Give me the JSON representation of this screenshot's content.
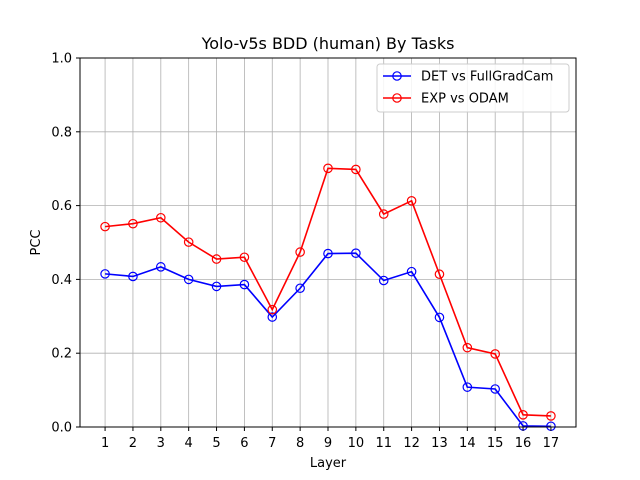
{
  "chart_data": {
    "type": "line",
    "title": "Yolo-v5s BDD (human) By Tasks",
    "xlabel": "Layer",
    "ylabel": "PCC",
    "x": [
      1,
      2,
      3,
      4,
      5,
      6,
      7,
      8,
      9,
      10,
      11,
      12,
      13,
      14,
      15,
      16,
      17
    ],
    "x_tick_labels": [
      "1",
      "2",
      "3",
      "4",
      "5",
      "6",
      "7",
      "8",
      "9",
      "10",
      "11",
      "12",
      "13",
      "14",
      "15",
      "16",
      "17"
    ],
    "xlim": [
      0.1,
      17.9
    ],
    "ylim": [
      0.0,
      1.0
    ],
    "y_ticks": [
      0.0,
      0.2,
      0.4,
      0.6,
      0.8,
      1.0
    ],
    "y_tick_labels": [
      "0.0",
      "0.2",
      "0.4",
      "0.6",
      "0.8",
      "1.0"
    ],
    "grid": true,
    "legend_position": "top-right",
    "series": [
      {
        "name": "DET vs FullGradCam",
        "color": "#0000ff",
        "values": [
          0.415,
          0.408,
          0.434,
          0.4,
          0.381,
          0.386,
          0.298,
          0.376,
          0.47,
          0.471,
          0.397,
          0.421,
          0.297,
          0.108,
          0.103,
          0.003,
          0.002
        ]
      },
      {
        "name": "EXP vs ODAM",
        "color": "#ff0000",
        "values": [
          0.543,
          0.551,
          0.567,
          0.501,
          0.455,
          0.46,
          0.318,
          0.474,
          0.701,
          0.698,
          0.577,
          0.613,
          0.414,
          0.215,
          0.198,
          0.033,
          0.03
        ]
      }
    ]
  }
}
